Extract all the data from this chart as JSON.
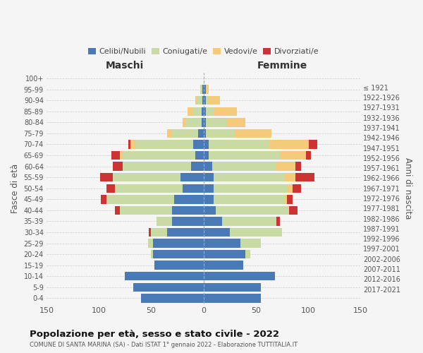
{
  "age_groups": [
    "0-4",
    "5-9",
    "10-14",
    "15-19",
    "20-24",
    "25-29",
    "30-34",
    "35-39",
    "40-44",
    "45-49",
    "50-54",
    "55-59",
    "60-64",
    "65-69",
    "70-74",
    "75-79",
    "80-84",
    "85-89",
    "90-94",
    "95-99",
    "100+"
  ],
  "birth_years": [
    "2017-2021",
    "2012-2016",
    "2007-2011",
    "2002-2006",
    "1997-2001",
    "1992-1996",
    "1987-1991",
    "1982-1986",
    "1977-1981",
    "1972-1976",
    "1967-1971",
    "1962-1966",
    "1957-1961",
    "1952-1956",
    "1947-1951",
    "1942-1946",
    "1937-1941",
    "1932-1936",
    "1927-1931",
    "1922-1926",
    "≤ 1921"
  ],
  "maschi": {
    "celibi": [
      60,
      67,
      75,
      47,
      48,
      48,
      35,
      30,
      30,
      28,
      20,
      22,
      12,
      8,
      10,
      5,
      2,
      2,
      1,
      1,
      0
    ],
    "coniugati": [
      0,
      0,
      0,
      0,
      2,
      5,
      15,
      15,
      50,
      65,
      65,
      65,
      65,
      70,
      55,
      25,
      15,
      8,
      5,
      2,
      0
    ],
    "vedovi": [
      0,
      0,
      0,
      0,
      0,
      0,
      0,
      0,
      0,
      0,
      0,
      0,
      0,
      2,
      5,
      5,
      3,
      5,
      2,
      0,
      0
    ],
    "divorziati": [
      0,
      0,
      0,
      0,
      0,
      0,
      2,
      0,
      5,
      5,
      8,
      12,
      10,
      8,
      2,
      0,
      0,
      0,
      0,
      0,
      0
    ]
  },
  "femmine": {
    "nubili": [
      55,
      55,
      68,
      38,
      40,
      35,
      25,
      18,
      12,
      10,
      10,
      10,
      8,
      5,
      5,
      2,
      2,
      2,
      2,
      2,
      0
    ],
    "coniugate": [
      0,
      0,
      0,
      0,
      5,
      20,
      50,
      52,
      70,
      68,
      70,
      68,
      62,
      68,
      58,
      28,
      20,
      8,
      2,
      0,
      0
    ],
    "vedove": [
      0,
      0,
      0,
      0,
      0,
      0,
      0,
      0,
      0,
      2,
      5,
      10,
      18,
      25,
      38,
      35,
      18,
      22,
      12,
      3,
      0
    ],
    "divorziate": [
      0,
      0,
      0,
      0,
      0,
      0,
      0,
      3,
      8,
      5,
      8,
      18,
      5,
      5,
      8,
      0,
      0,
      0,
      0,
      0,
      0
    ]
  },
  "colors": {
    "celibi": "#4a7ab5",
    "coniugati": "#c8dba4",
    "vedovi": "#f5ca7a",
    "divorziati": "#cc3333"
  },
  "xlim": 150,
  "title": "Popolazione per età, sesso e stato civile - 2022",
  "subtitle": "COMUNE DI SANTA MARINA (SA) - Dati ISTAT 1° gennaio 2022 - Elaborazione TUTTITALIA.IT",
  "ylabel": "Fasce di età",
  "ylabel_right": "Anni di nascita",
  "xlabel_left": "Maschi",
  "xlabel_right": "Femmine",
  "legend_labels": [
    "Celibi/Nubili",
    "Coniugati/e",
    "Vedovi/e",
    "Divorziati/e"
  ],
  "background_color": "#f5f5f5"
}
